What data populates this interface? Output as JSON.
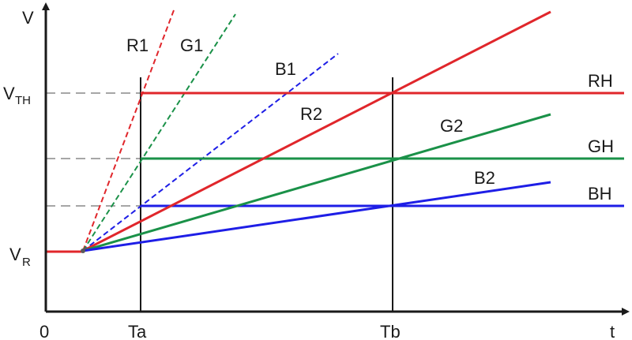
{
  "axes": {
    "y_label": "V",
    "x_label": "t",
    "origin_label": "0",
    "y_ticks": {
      "vth_main": "V",
      "vth_sub": "TH",
      "vr_main": "V",
      "vr_sub": "R"
    },
    "x_ticks": {
      "ta": "Ta",
      "tb": "Tb"
    }
  },
  "lines": {
    "r1": "R1",
    "g1": "G1",
    "b1": "B1",
    "r2": "R2",
    "g2": "G2",
    "b2": "B2",
    "rh": "RH",
    "gh": "GH",
    "bh": "BH"
  },
  "colors": {
    "red": "#e0262b",
    "green": "#1a9148",
    "blue": "#1e1ee6",
    "axis": "#1a1a1a",
    "guide": "#888888"
  }
}
